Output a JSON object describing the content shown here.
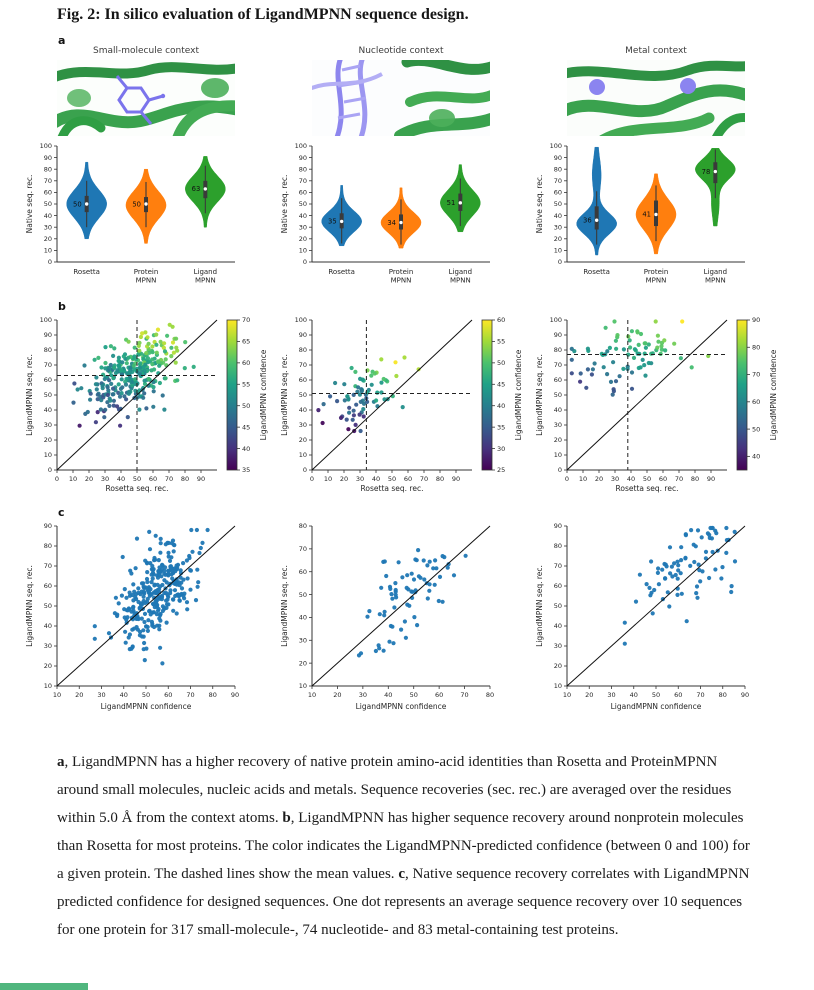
{
  "figure": {
    "title": "Fig. 2: In silico evaluation of LigandMPNN sequence design.",
    "panel_labels": {
      "a": "a",
      "b": "b",
      "c": "c"
    }
  },
  "colors": {
    "rosetta": "#1f77b4",
    "protein_mpnn": "#ff7f0e",
    "ligand_mpnn": "#2ca02c",
    "scatter_point": "#1f77b4",
    "viridis": [
      "#440154",
      "#46327e",
      "#365c8d",
      "#277f8e",
      "#1fa187",
      "#4ac16d",
      "#a0da39",
      "#fde725"
    ],
    "bottom_bar": "#50b67e"
  },
  "chart_data": [
    {
      "id": "violin-small-molecule",
      "type": "violin",
      "title": "Small-molecule context",
      "ylabel": "Native seq. rec.",
      "ylim": [
        0,
        100
      ],
      "yticks": [
        0,
        10,
        20,
        30,
        40,
        50,
        60,
        70,
        80,
        90,
        100
      ],
      "categories": [
        [
          "Rosetta"
        ],
        [
          "Protein",
          "MPNN"
        ],
        [
          "Ligand",
          "MPNN"
        ]
      ],
      "series": [
        {
          "name": "Rosetta",
          "color": "#1f77b4",
          "label": "50",
          "median": 50,
          "q1": 43,
          "q3": 57,
          "lo": 20,
          "hi": 86,
          "mode": 50,
          "sigma": 12
        },
        {
          "name": "ProteinMPNN",
          "color": "#ff7f0e",
          "label": "50",
          "median": 50,
          "q1": 43,
          "q3": 56,
          "lo": 16,
          "hi": 80,
          "mode": 49,
          "sigma": 12
        },
        {
          "name": "LigandMPNN",
          "color": "#2ca02c",
          "label": "63",
          "median": 63,
          "q1": 55,
          "q3": 70,
          "lo": 30,
          "hi": 91,
          "mode": 63,
          "sigma": 11
        }
      ]
    },
    {
      "id": "violin-nucleotide",
      "type": "violin",
      "title": "Nucleotide context",
      "ylabel": "Native seq. rec.",
      "ylim": [
        0,
        100
      ],
      "yticks": [
        0,
        10,
        20,
        30,
        40,
        50,
        60,
        70,
        80,
        90,
        100
      ],
      "categories": [
        [
          "Rosetta"
        ],
        [
          "Protein",
          "MPNN"
        ],
        [
          "Ligand",
          "MPNN"
        ]
      ],
      "series": [
        {
          "name": "Rosetta",
          "color": "#1f77b4",
          "label": "35",
          "median": 35,
          "q1": 29,
          "q3": 42,
          "lo": 14,
          "hi": 66,
          "mode": 35,
          "sigma": 9
        },
        {
          "name": "ProteinMPNN",
          "color": "#ff7f0e",
          "label": "34",
          "median": 34,
          "q1": 28,
          "q3": 41,
          "lo": 12,
          "hi": 64,
          "mode": 34,
          "sigma": 9
        },
        {
          "name": "LigandMPNN",
          "color": "#2ca02c",
          "label": "51",
          "median": 51,
          "q1": 44,
          "q3": 59,
          "lo": 26,
          "hi": 84,
          "mode": 51,
          "sigma": 11
        }
      ]
    },
    {
      "id": "violin-metal",
      "type": "violin",
      "title": "Metal context",
      "ylabel": "Native seq. rec.",
      "ylim": [
        0,
        100
      ],
      "yticks": [
        0,
        10,
        20,
        30,
        40,
        50,
        60,
        70,
        80,
        90,
        100
      ],
      "categories": [
        [
          "Rosetta"
        ],
        [
          "Protein",
          "MPNN"
        ],
        [
          "Ligand",
          "MPNN"
        ]
      ],
      "series": [
        {
          "name": "Rosetta",
          "color": "#1f77b4",
          "label": "36",
          "median": 36,
          "q1": 28,
          "q3": 48,
          "lo": 6,
          "hi": 99,
          "mode": 33,
          "sigma": 9,
          "mode2": 75,
          "sigma2": 14,
          "w2": 0.18
        },
        {
          "name": "ProteinMPNN",
          "color": "#ff7f0e",
          "label": "41",
          "median": 41,
          "q1": 31,
          "q3": 53,
          "lo": 7,
          "hi": 76,
          "mode": 41,
          "sigma": 13
        },
        {
          "name": "LigandMPNN",
          "color": "#2ca02c",
          "label": "78",
          "median": 78,
          "q1": 68,
          "q3": 86,
          "lo": 31,
          "hi": 98,
          "mode": 80,
          "sigma": 9,
          "mode2": 50,
          "sigma2": 12,
          "w2": 0.15
        }
      ]
    },
    {
      "id": "b-small-molecule",
      "type": "scatter",
      "xlabel": "Rosetta seq. rec.",
      "ylabel": "LigandMPNN seq. rec.",
      "xlim": [
        0,
        100
      ],
      "ylim": [
        0,
        100
      ],
      "xticks": [
        0,
        10,
        20,
        30,
        40,
        50,
        60,
        70,
        80,
        90
      ],
      "yticks": [
        0,
        10,
        20,
        30,
        40,
        50,
        60,
        70,
        80,
        90,
        100
      ],
      "diagonal": true,
      "mean_lines": {
        "x": 50,
        "y": 63
      },
      "colorbar": {
        "label": "LigandMPNN confidence",
        "min": 35,
        "max": 70,
        "ticks": [
          70,
          65,
          60,
          55,
          50,
          45,
          40,
          35
        ]
      },
      "cloud": {
        "n": 317,
        "cx": 47,
        "cy": 64,
        "sx": 14,
        "sy": 13,
        "rho": 0.45,
        "xclip": [
          4,
          94
        ],
        "yclip": [
          18,
          97
        ]
      }
    },
    {
      "id": "b-nucleotide",
      "type": "scatter",
      "xlabel": "Rosetta seq. rec.",
      "ylabel": "LigandMPNN seq. rec.",
      "xlim": [
        0,
        100
      ],
      "ylim": [
        0,
        100
      ],
      "xticks": [
        0,
        10,
        20,
        30,
        40,
        50,
        60,
        70,
        80,
        90
      ],
      "yticks": [
        0,
        10,
        20,
        30,
        40,
        50,
        60,
        70,
        80,
        90,
        100
      ],
      "diagonal": true,
      "mean_lines": {
        "x": 34,
        "y": 51
      },
      "colorbar": {
        "label": "LigandMPNN confidence",
        "min": 25,
        "max": 60,
        "ticks": [
          60,
          55,
          50,
          45,
          40,
          35,
          30,
          25
        ]
      },
      "cloud": {
        "n": 74,
        "cx": 33,
        "cy": 50,
        "sx": 11,
        "sy": 10,
        "rho": 0.45,
        "xclip": [
          4,
          70
        ],
        "yclip": [
          26,
          76
        ]
      }
    },
    {
      "id": "b-metal",
      "type": "scatter",
      "xlabel": "Rosetta seq. rec.",
      "ylabel": "LigandMPNN seq. rec.",
      "xlim": [
        0,
        100
      ],
      "ylim": [
        0,
        100
      ],
      "xticks": [
        0,
        10,
        20,
        30,
        40,
        50,
        60,
        70,
        80,
        90
      ],
      "yticks": [
        0,
        10,
        20,
        30,
        40,
        50,
        60,
        70,
        80,
        90,
        100
      ],
      "diagonal": true,
      "mean_lines": {
        "x": 38,
        "y": 77
      },
      "colorbar": {
        "label": "LigandMPNN confidence",
        "min": 35,
        "max": 90,
        "ticks": [
          90,
          80,
          70,
          60,
          50,
          40
        ]
      },
      "cloud": {
        "n": 83,
        "cx": 38,
        "cy": 76,
        "sx": 19,
        "sy": 12,
        "rho": 0.15,
        "xclip": [
          3,
          91
        ],
        "yclip": [
          36,
          99
        ]
      }
    },
    {
      "id": "c-small-molecule",
      "type": "scatter",
      "xlabel": "LigandMPNN confidence",
      "ylabel": "LigandMPNN seq. rec.",
      "xlim": [
        10,
        90
      ],
      "ylim": [
        10,
        90
      ],
      "xticks": [
        10,
        20,
        30,
        40,
        50,
        60,
        70,
        80,
        90
      ],
      "yticks": [
        10,
        20,
        30,
        40,
        50,
        60,
        70,
        80,
        90
      ],
      "diagonal": true,
      "point_color": "#1f77b4",
      "cloud": {
        "n": 317,
        "cx": 55,
        "cy": 58,
        "sx": 9,
        "sy": 13,
        "rho": 0.55,
        "xclip": [
          27,
          79
        ],
        "yclip": [
          13,
          88
        ]
      }
    },
    {
      "id": "c-nucleotide",
      "type": "scatter",
      "xlabel": "LigandMPNN confidence",
      "ylabel": "LigandMPNN seq. rec.",
      "xlim": [
        10,
        80
      ],
      "ylim": [
        10,
        80
      ],
      "xticks": [
        10,
        20,
        30,
        40,
        50,
        60,
        70,
        80
      ],
      "yticks": [
        10,
        20,
        30,
        40,
        50,
        60,
        70,
        80
      ],
      "diagonal": true,
      "point_color": "#1f77b4",
      "cloud": {
        "n": 74,
        "cx": 47,
        "cy": 49,
        "sx": 10,
        "sy": 11,
        "rho": 0.55,
        "xclip": [
          23,
          71
        ],
        "yclip": [
          14,
          78
        ]
      }
    },
    {
      "id": "c-metal",
      "type": "scatter",
      "xlabel": "LigandMPNN confidence",
      "ylabel": "LigandMPNN seq. rec.",
      "xlim": [
        10,
        90
      ],
      "ylim": [
        10,
        90
      ],
      "xticks": [
        10,
        20,
        30,
        40,
        50,
        60,
        70,
        80,
        90
      ],
      "yticks": [
        10,
        20,
        30,
        40,
        50,
        60,
        70,
        80,
        90
      ],
      "diagonal": true,
      "point_color": "#1f77b4",
      "cloud": {
        "n": 83,
        "cx": 65,
        "cy": 72,
        "sx": 11,
        "sy": 12,
        "rho": 0.5,
        "xclip": [
          36,
          88
        ],
        "yclip": [
          28,
          89
        ]
      }
    }
  ],
  "caption": {
    "segments": [
      {
        "text": "a",
        "bold": true
      },
      {
        "text": ", LigandMPNN has a higher recovery of native protein amino-acid identities than Rosetta and ProteinMPNN around small molecules, nucleic acids and metals. Sequence recoveries (sec. rec.) are averaged over the residues within 5.0 Å from the context atoms. ",
        "bold": false
      },
      {
        "text": "b",
        "bold": true
      },
      {
        "text": ", LigandMPNN has higher sequence recovery around nonprotein molecules than Rosetta for most proteins. The color indicates the LigandMPNN-predicted confidence (between 0 and 100) for a given protein. The dashed lines show the mean values. ",
        "bold": false
      },
      {
        "text": "c",
        "bold": true
      },
      {
        "text": ", Native sequence recovery correlates with LigandMPNN predicted confidence for designed sequences. One dot represents an average sequence recovery over 10 sequences for one protein for 317 small-molecule-, 74 nucleotide- and 83 metal-containing test proteins.",
        "bold": false
      }
    ]
  }
}
